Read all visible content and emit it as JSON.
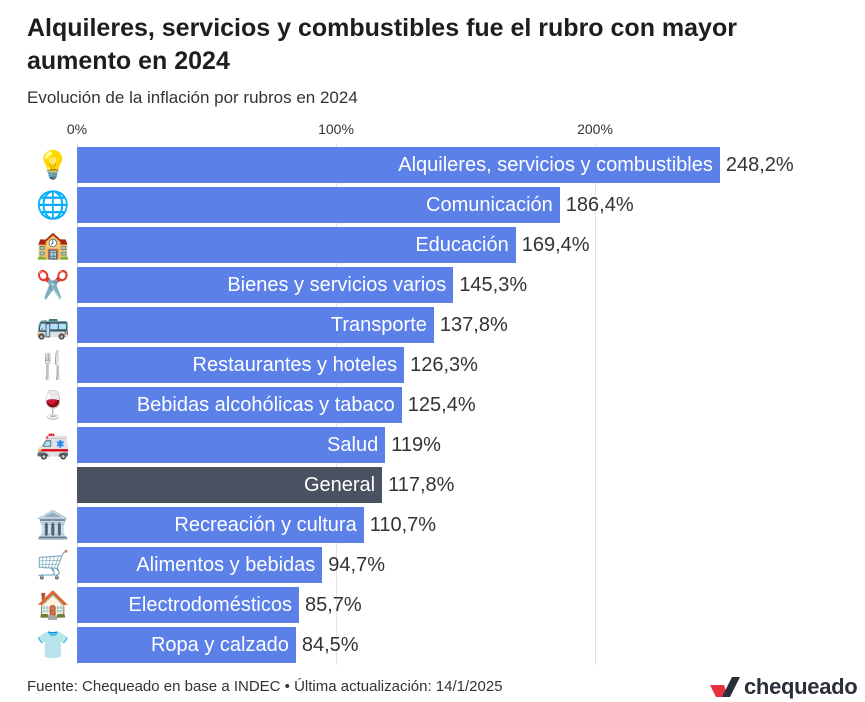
{
  "title": "Alquileres, servicios y combustibles fue el rubro con mayor aumento en 2024",
  "subtitle": "Evolución de la inflación por rubros en 2024",
  "source": "Fuente: Chequeado en base a INDEC • Última actualización: 14/1/2025",
  "logo_text": "chequeado",
  "colors": {
    "bar": "#5b80e8",
    "highlight": "#4a5160",
    "logo_red": "#e8303f",
    "logo_dark": "#2a2f3a"
  },
  "chart_data": {
    "type": "bar",
    "orientation": "horizontal",
    "title": "Alquileres, servicios y combustibles fue el rubro con mayor aumento en 2024",
    "subtitle": "Evolución de la inflación por rubros en 2024",
    "xlim": [
      0,
      250
    ],
    "ticks": [
      {
        "value": 0,
        "label": "0%"
      },
      {
        "value": 100,
        "label": "100%"
      },
      {
        "value": 200,
        "label": "200%"
      }
    ],
    "grid": true,
    "categories": [
      "Alquileres, servicios y combustibles",
      "Comunicación",
      "Educación",
      "Bienes y servicios varios",
      "Transporte",
      "Restaurantes y hoteles",
      "Bebidas alcohólicas y tabaco",
      "Salud",
      "General",
      "Recreación y cultura",
      "Alimentos y bebidas",
      "Electrodomésticos",
      "Ropa y calzado"
    ],
    "values": [
      248.2,
      186.4,
      169.4,
      145.3,
      137.8,
      126.3,
      125.4,
      119,
      117.8,
      110.7,
      94.7,
      85.7,
      84.5
    ],
    "value_labels": [
      "248,2%",
      "186,4%",
      "169,4%",
      "145,3%",
      "137,8%",
      "126,3%",
      "125,4%",
      "119%",
      "117,8%",
      "110,7%",
      "94,7%",
      "85,7%",
      "84,5%"
    ],
    "icons": [
      {
        "name": "lightbulb-icon",
        "glyph": "💡"
      },
      {
        "name": "globe-icon",
        "glyph": "🌐"
      },
      {
        "name": "school-icon",
        "glyph": "🏫"
      },
      {
        "name": "scissors-icon",
        "glyph": "✂️"
      },
      {
        "name": "bus-icon",
        "glyph": "🚌"
      },
      {
        "name": "fork-knife-icon",
        "glyph": "🍴"
      },
      {
        "name": "wine-glass-icon",
        "glyph": "🍷"
      },
      {
        "name": "ambulance-icon",
        "glyph": "🚑"
      },
      {
        "name": "",
        "glyph": ""
      },
      {
        "name": "museum-icon",
        "glyph": "🏛️"
      },
      {
        "name": "shopping-cart-icon",
        "glyph": "🛒"
      },
      {
        "name": "house-icon",
        "glyph": "🏠"
      },
      {
        "name": "tshirt-icon",
        "glyph": "👕"
      }
    ],
    "highlight": "General"
  }
}
